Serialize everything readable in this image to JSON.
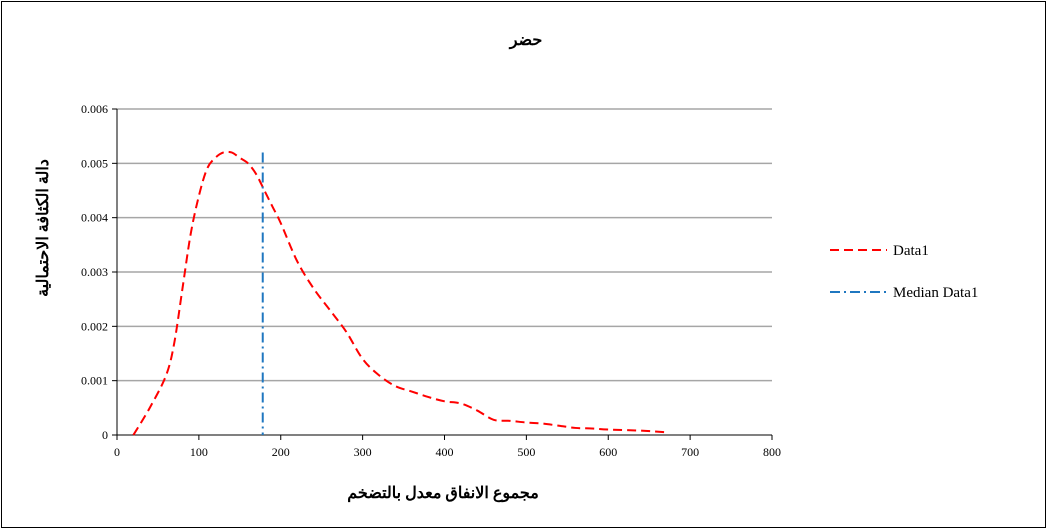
{
  "chart_data": {
    "type": "line",
    "title": "حضر",
    "xlabel": "مجموع الانفاق معدل بالتضخم",
    "ylabel": "دالة الكثافة الاحتمالية",
    "xlim": [
      0,
      800
    ],
    "ylim": [
      0,
      0.006
    ],
    "x_ticks": [
      "0",
      "100",
      "200",
      "300",
      "400",
      "500",
      "600",
      "700",
      "800"
    ],
    "y_ticks": [
      "0",
      "0.001",
      "0.002",
      "0.003",
      "0.004",
      "0.005",
      "0.006"
    ],
    "grid": "horizontal",
    "legend_position": "right",
    "series": [
      {
        "name": "Data1",
        "style": "dashed",
        "color": "#ff0000",
        "points": [
          [
            20,
            0
          ],
          [
            40,
            0.0005
          ],
          [
            60,
            0.0011
          ],
          [
            70,
            0.0017
          ],
          [
            80,
            0.0027
          ],
          [
            90,
            0.0037
          ],
          [
            100,
            0.0044
          ],
          [
            110,
            0.0049
          ],
          [
            120,
            0.0051
          ],
          [
            130,
            0.0052
          ],
          [
            140,
            0.0052
          ],
          [
            150,
            0.0051
          ],
          [
            160,
            0.005
          ],
          [
            170,
            0.0048
          ],
          [
            180,
            0.0045
          ],
          [
            190,
            0.0042
          ],
          [
            200,
            0.0039
          ],
          [
            220,
            0.0032
          ],
          [
            240,
            0.0027
          ],
          [
            260,
            0.0023
          ],
          [
            280,
            0.0019
          ],
          [
            300,
            0.0014
          ],
          [
            320,
            0.0011
          ],
          [
            340,
            0.0009
          ],
          [
            360,
            0.0008
          ],
          [
            380,
            0.0007
          ],
          [
            400,
            0.00062
          ],
          [
            420,
            0.00058
          ],
          [
            440,
            0.00045
          ],
          [
            460,
            0.00028
          ],
          [
            480,
            0.00026
          ],
          [
            500,
            0.00023
          ],
          [
            520,
            0.00021
          ],
          [
            540,
            0.00017
          ],
          [
            560,
            0.00013
          ],
          [
            580,
            0.00012
          ],
          [
            600,
            0.0001
          ],
          [
            640,
            8e-05
          ],
          [
            670,
            5e-05
          ]
        ]
      },
      {
        "name": "Median Data1",
        "style": "dash-dot",
        "color": "#1f77c0",
        "x": 178,
        "y_range": [
          0,
          0.0052
        ]
      }
    ]
  }
}
